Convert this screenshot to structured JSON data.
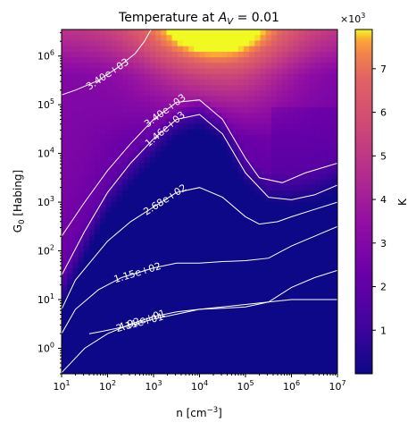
{
  "chart_data": {
    "type": "heatmap",
    "title_prefix": "Temperature at ",
    "title_math": "A",
    "title_sub": "V",
    "title_suffix": " = 0.01",
    "xlabel_main": "n [cm",
    "xlabel_sup": "−3",
    "xlabel_end": "]",
    "ylabel_main": "G",
    "ylabel_sub": "0",
    "ylabel_end": " [Habing]",
    "x_scale": "log",
    "y_scale": "log",
    "xlim": [
      10,
      10000000
    ],
    "ylim": [
      0.3,
      3500000
    ],
    "x_ticks": [
      {
        "value": 10,
        "base": "10",
        "exp": "1"
      },
      {
        "value": 100,
        "base": "10",
        "exp": "2"
      },
      {
        "value": 1000,
        "base": "10",
        "exp": "3"
      },
      {
        "value": 10000,
        "base": "10",
        "exp": "4"
      },
      {
        "value": 100000,
        "base": "10",
        "exp": "5"
      },
      {
        "value": 1000000,
        "base": "10",
        "exp": "6"
      },
      {
        "value": 10000000,
        "base": "10",
        "exp": "7"
      }
    ],
    "y_ticks": [
      {
        "value": 1,
        "base": "10",
        "exp": "0"
      },
      {
        "value": 10,
        "base": "10",
        "exp": "1"
      },
      {
        "value": 100,
        "base": "10",
        "exp": "2"
      },
      {
        "value": 1000,
        "base": "10",
        "exp": "3"
      },
      {
        "value": 10000,
        "base": "10",
        "exp": "4"
      },
      {
        "value": 100000,
        "base": "10",
        "exp": "5"
      },
      {
        "value": 1000000,
        "base": "10",
        "exp": "6"
      }
    ],
    "colormap": "plasma",
    "colorbar": {
      "label": "K",
      "multiplier_base": "×10",
      "multiplier_exp": "3",
      "range": [
        0,
        7.9
      ],
      "ticks": [
        "1",
        "2",
        "3",
        "4",
        "5",
        "6",
        "7"
      ]
    },
    "contours": [
      {
        "label": "2.11e+01",
        "points": [
          [
            1.6,
            0.3
          ],
          [
            1.9,
            0.35
          ],
          [
            2.4,
            0.45
          ],
          [
            3,
            0.6
          ],
          [
            3.5,
            0.7
          ],
          [
            4,
            0.8
          ],
          [
            4.5,
            0.85
          ],
          [
            5,
            0.9
          ],
          [
            5.5,
            0.95
          ],
          [
            6,
            1.0
          ],
          [
            6.5,
            1.0
          ],
          [
            7,
            1.0
          ]
        ]
      },
      {
        "label": "4.92e+01",
        "points": [
          [
            1.0,
            -0.5
          ],
          [
            1.5,
            0.0
          ],
          [
            2,
            0.3
          ],
          [
            2.5,
            0.5
          ],
          [
            3,
            0.65
          ],
          [
            3.5,
            0.75
          ],
          [
            4,
            0.8
          ],
          [
            4.5,
            0.82
          ],
          [
            5,
            0.85
          ],
          [
            5.5,
            0.95
          ],
          [
            6,
            1.25
          ],
          [
            6.5,
            1.45
          ],
          [
            7,
            1.6
          ]
        ]
      },
      {
        "label": "1.15e+02",
        "points": [
          [
            1.0,
            0.3
          ],
          [
            1.3,
            0.8
          ],
          [
            1.8,
            1.2
          ],
          [
            2.3,
            1.45
          ],
          [
            3,
            1.65
          ],
          [
            3.5,
            1.75
          ],
          [
            4,
            1.75
          ],
          [
            4.5,
            1.78
          ],
          [
            5,
            1.8
          ],
          [
            5.5,
            1.85
          ],
          [
            6,
            2.1
          ],
          [
            6.5,
            2.3
          ],
          [
            7,
            2.5
          ]
        ]
      },
      {
        "label": "2.68e+02",
        "points": [
          [
            1.0,
            0.8
          ],
          [
            1.3,
            1.4
          ],
          [
            2,
            2.2
          ],
          [
            2.5,
            2.6
          ],
          [
            3,
            2.9
          ],
          [
            3.5,
            3.2
          ],
          [
            4,
            3.3
          ],
          [
            4.5,
            3.1
          ],
          [
            5,
            2.7
          ],
          [
            5.3,
            2.55
          ],
          [
            5.7,
            2.6
          ],
          [
            6,
            2.7
          ],
          [
            6.5,
            2.85
          ],
          [
            7,
            3.0
          ]
        ]
      },
      {
        "label": "1.46e+03",
        "points": [
          [
            1.0,
            1.5
          ],
          [
            1.5,
            2.4
          ],
          [
            2,
            3.2
          ],
          [
            2.5,
            3.8
          ],
          [
            3,
            4.3
          ],
          [
            3.5,
            4.7
          ],
          [
            4,
            4.8
          ],
          [
            4.5,
            4.4
          ],
          [
            5,
            3.6
          ],
          [
            5.5,
            3.1
          ],
          [
            6,
            3.05
          ],
          [
            6.5,
            3.15
          ],
          [
            7,
            3.35
          ]
        ]
      },
      {
        "label": "3.40e+03",
        "points": [
          [
            1.0,
            2.3
          ],
          [
            1.5,
            3.0
          ],
          [
            2,
            3.65
          ],
          [
            2.5,
            4.2
          ],
          [
            3,
            4.7
          ],
          [
            3.5,
            5.05
          ],
          [
            4,
            5.1
          ],
          [
            4.5,
            4.7
          ],
          [
            5,
            3.9
          ],
          [
            5.3,
            3.5
          ],
          [
            5.8,
            3.4
          ],
          [
            6.3,
            3.6
          ],
          [
            7,
            3.8
          ]
        ]
      },
      {
        "label": "3.40e+03",
        "points": [
          [
            1.0,
            5.2
          ],
          [
            1.3,
            5.3
          ],
          [
            1.8,
            5.5
          ],
          [
            2.2,
            5.75
          ],
          [
            2.6,
            6.05
          ],
          [
            2.8,
            6.3
          ],
          [
            2.95,
            6.55
          ]
        ]
      }
    ]
  }
}
